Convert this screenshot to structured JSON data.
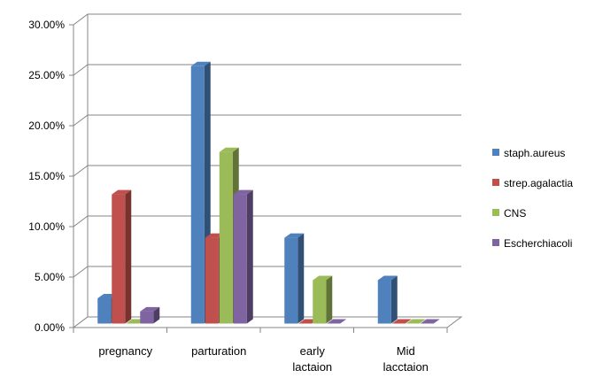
{
  "chart_data": {
    "type": "bar",
    "categories": [
      [
        "pregnancy"
      ],
      [
        "parturation"
      ],
      [
        "early",
        "lactaion"
      ],
      [
        "Mid",
        "lacctaion"
      ]
    ],
    "series": [
      {
        "name": "staph.aureus",
        "color": "#4F81BD",
        "values": [
          2.5,
          25.5,
          8.5,
          4.3
        ]
      },
      {
        "name": "strep.agalactia",
        "color": "#C0504D",
        "values": [
          12.8,
          8.5,
          0.0,
          0.0
        ]
      },
      {
        "name": "CNS",
        "color": "#9BBB59",
        "values": [
          0.0,
          17.0,
          4.3,
          0.0
        ]
      },
      {
        "name": "Escherchiacoli",
        "color": "#8064A2",
        "values": [
          1.2,
          12.8,
          0.0,
          0.0
        ]
      }
    ],
    "y_ticks": [
      "0.00%",
      "5.00%",
      "10.00%",
      "15.00%",
      "20.00%",
      "25.00%",
      "30.00%"
    ],
    "ylim": [
      0,
      30
    ],
    "grid": true,
    "legend_position": "right"
  }
}
